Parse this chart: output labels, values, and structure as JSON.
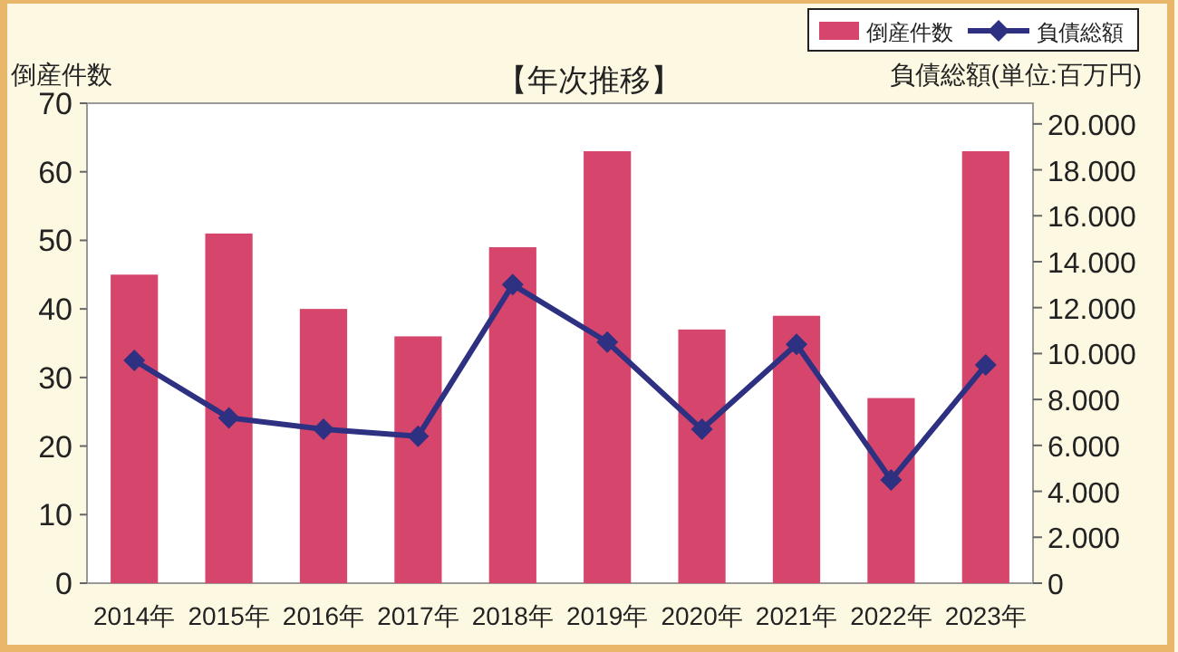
{
  "chart_data": {
    "type": "bar",
    "title": "【年次推移】",
    "ylabel": "倒産件数",
    "y2label": "負債総額(単位:百万円)",
    "categories": [
      "2014年",
      "2015年",
      "2016年",
      "2017年",
      "2018年",
      "2019年",
      "2020年",
      "2021年",
      "2022年",
      "2023年"
    ],
    "series": [
      {
        "name": "倒産件数",
        "color": "#d6456b",
        "values": [
          45,
          51,
          40,
          36,
          49,
          63,
          37,
          39,
          27,
          63
        ]
      },
      {
        "name": "負債総額",
        "type": "line",
        "axis": "y2",
        "color": "#2e3082",
        "marker": "diamond",
        "values": [
          9700,
          7200,
          6700,
          6400,
          13000,
          10500,
          6700,
          10400,
          4500,
          9500
        ]
      }
    ],
    "ylim": [
      0,
      70
    ],
    "yticks": [
      0,
      10,
      20,
      30,
      40,
      50,
      60,
      70
    ],
    "y2lim": [
      0,
      20900
    ],
    "y2ticks": [
      0,
      {
        "value": 2000,
        "label": "2.000"
      },
      {
        "value": 4000,
        "label": "4.000"
      },
      {
        "value": 6000,
        "label": "6.000"
      },
      {
        "value": 8000,
        "label": "8.000"
      },
      {
        "value": 10000,
        "label": "10.000"
      },
      {
        "value": 12000,
        "label": "12.000"
      },
      {
        "value": 14000,
        "label": "14.000"
      },
      {
        "value": 16000,
        "label": "16.000"
      },
      {
        "value": 18000,
        "label": "18.000"
      },
      {
        "value": 20000,
        "label": "20.000"
      }
    ],
    "legend": "top right"
  }
}
